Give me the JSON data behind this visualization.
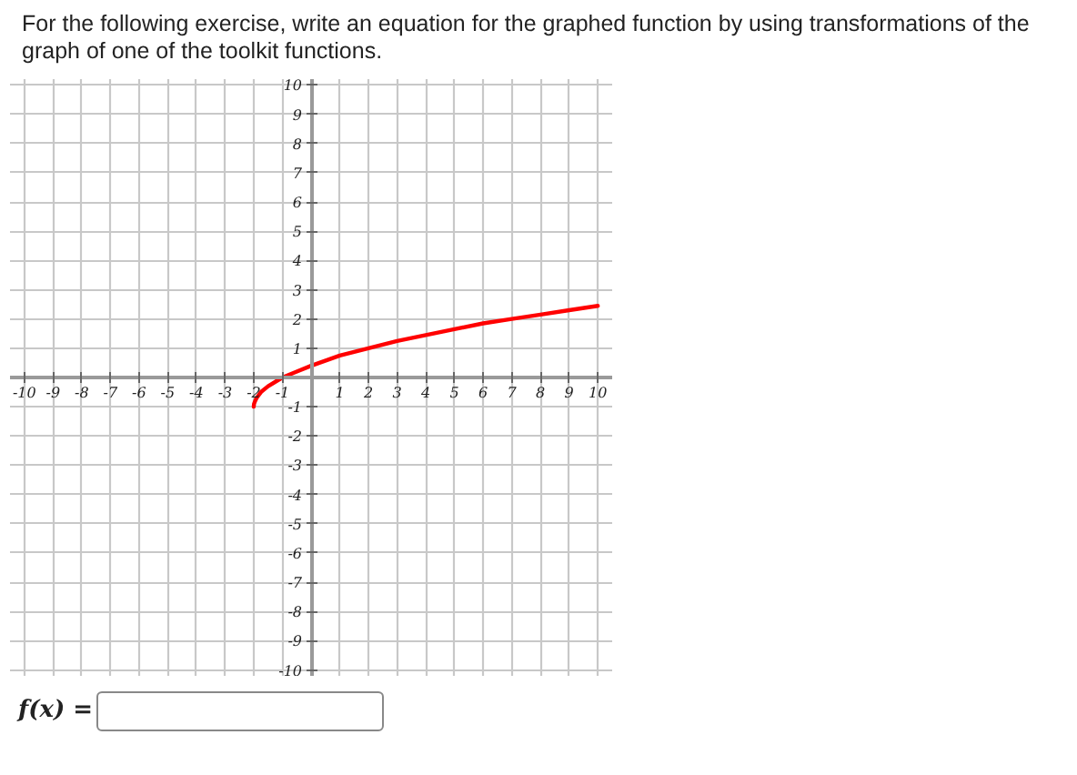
{
  "chart_data": {
    "type": "line",
    "title": "For the following exercise, write an equation for the graphed function by using transformations of the graph of one of the toolkit functions.",
    "annotations": [
      "f(x) ="
    ],
    "x": [
      -2,
      -1.99,
      -1.95,
      -1.9,
      -1.75,
      -1.5,
      -1,
      -0.5,
      0,
      1,
      2,
      3,
      4,
      5,
      6,
      7,
      8,
      9,
      10
    ],
    "series": [
      {
        "color": "#ff0000",
        "values": [
          -1,
          -0.9,
          -0.8,
          -0.7,
          -0.5,
          -0.3,
          0,
          0.2,
          0.4,
          0.75,
          1,
          1.25,
          1.45,
          1.65,
          1.85,
          2,
          2.15,
          2.3,
          2.45
        ]
      }
    ],
    "xlim": [
      -10.5,
      10.5
    ],
    "ylim": [
      -10.2,
      10.2
    ],
    "xticks": [
      -10,
      -9,
      -8,
      -7,
      -6,
      -5,
      -4,
      -3,
      -2,
      -1,
      1,
      2,
      3,
      4,
      5,
      6,
      7,
      8,
      9,
      10
    ],
    "yticks": [
      -10,
      -9,
      -8,
      -7,
      -6,
      -5,
      -4,
      -3,
      -2,
      -1,
      1,
      2,
      3,
      4,
      5,
      6,
      7,
      8,
      9,
      10
    ],
    "grid": true,
    "marker": "none",
    "line_style": "solid"
  }
}
